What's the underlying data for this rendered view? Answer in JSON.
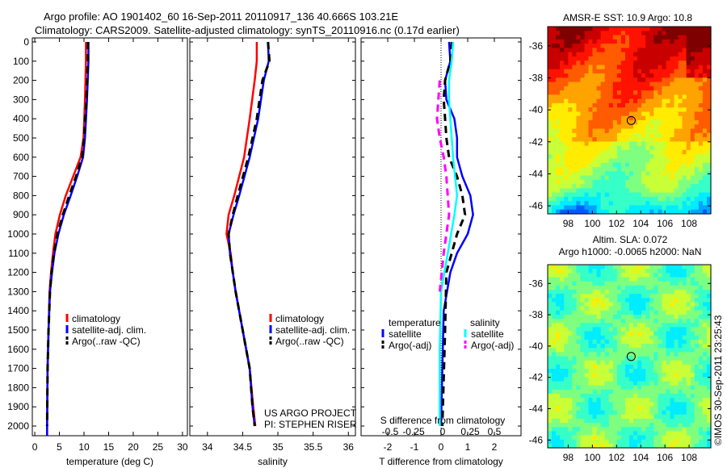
{
  "title_line1": "Argo profile: AO 1901402_60 16-Sep-2011 20110917_136 40.666S 103.21E",
  "title_line2": "Climatology: CARS2009. Satellite-adjusted climatology: synTS_20110916.nc (0.17d earlier)",
  "credit": "©IMOS 30-Sep-2011 23:25:43",
  "project_line1": "US ARGO PROJECT",
  "project_line2": "PI: STEPHEN RISER",
  "chart_data": [
    {
      "type": "line",
      "id": "temperature",
      "xlabel": "temperature (deg C)",
      "ylabel": "",
      "xlim": [
        -0.5,
        31
      ],
      "ylim": [
        2050,
        0
      ],
      "xticks": [
        0,
        5,
        10,
        15,
        20,
        25,
        30
      ],
      "yticks": [
        0,
        100,
        200,
        300,
        400,
        500,
        600,
        700,
        800,
        900,
        1000,
        1100,
        1200,
        1300,
        1400,
        1500,
        1600,
        1700,
        1800,
        1900,
        2000
      ],
      "legend": [
        "climatology",
        "satellite-adj. clim.",
        "Argo(..raw -QC)"
      ],
      "series": [
        {
          "name": "climatology",
          "color": "#ff0000",
          "dash": false,
          "depth": [
            0,
            100,
            300,
            500,
            600,
            700,
            800,
            900,
            1000,
            1100,
            1200,
            1300,
            1500,
            1700,
            2000,
            2050
          ],
          "values": [
            10.4,
            10.4,
            10.2,
            9.9,
            9.3,
            7.8,
            6.3,
            5.1,
            4.2,
            3.7,
            3.3,
            3.0,
            2.8,
            2.6,
            2.5,
            2.5
          ]
        },
        {
          "name": "satellite-adj. clim.",
          "color": "#0000ff",
          "dash": false,
          "depth": [
            0,
            100,
            300,
            500,
            600,
            700,
            800,
            900,
            1000,
            1100,
            1200,
            1300,
            1500,
            1700,
            2000,
            2050
          ],
          "values": [
            10.9,
            10.9,
            10.6,
            10.2,
            9.8,
            8.6,
            7.3,
            5.9,
            4.8,
            4.0,
            3.5,
            3.1,
            2.8,
            2.6,
            2.5,
            2.5
          ]
        },
        {
          "name": "Argo(..raw -QC)",
          "color": "#000000",
          "dash": true,
          "depth": [
            0,
            100,
            300,
            500,
            600,
            700,
            800,
            900,
            1000,
            1100,
            1200,
            1300,
            1500,
            1700,
            2000
          ],
          "values": [
            10.8,
            10.8,
            10.5,
            10.0,
            9.6,
            8.4,
            7.0,
            5.7,
            4.6,
            3.9,
            3.4,
            3.1,
            2.8,
            2.6,
            2.5
          ]
        }
      ]
    },
    {
      "type": "line",
      "id": "salinity",
      "xlabel": "salinity",
      "xlim": [
        33.75,
        36.1
      ],
      "ylim": [
        2050,
        0
      ],
      "xticks": [
        34,
        34.5,
        35,
        35.5,
        36
      ],
      "legend": [
        "climatology",
        "satellite-adj. clim.",
        "Argo(..raw -QC)"
      ],
      "series": [
        {
          "name": "climatology",
          "color": "#ff0000",
          "dash": false,
          "depth": [
            0,
            100,
            200,
            400,
            600,
            800,
            900,
            1000,
            1100,
            1200,
            1300,
            1500,
            1700,
            1900,
            2000
          ],
          "values": [
            34.7,
            34.7,
            34.67,
            34.6,
            34.52,
            34.38,
            34.3,
            34.27,
            34.33,
            34.36,
            34.4,
            34.5,
            34.6,
            34.65,
            34.68
          ]
        },
        {
          "name": "satellite-adj. clim.",
          "color": "#0000ff",
          "dash": false,
          "depth": [
            0,
            100,
            200,
            400,
            600,
            800,
            900,
            1000,
            1100,
            1200,
            1300,
            1500,
            1700,
            1900,
            2000
          ],
          "values": [
            34.86,
            34.87,
            34.8,
            34.72,
            34.6,
            34.45,
            34.37,
            34.3,
            34.32,
            34.36,
            34.4,
            34.5,
            34.6,
            34.64,
            34.67
          ]
        },
        {
          "name": "Argo(..raw -QC)",
          "color": "#000000",
          "dash": true,
          "depth": [
            0,
            100,
            200,
            400,
            600,
            800,
            900,
            1000,
            1100,
            1200,
            1300,
            1500,
            1700,
            1900,
            2000
          ],
          "values": [
            34.86,
            34.88,
            34.78,
            34.7,
            34.58,
            34.43,
            34.36,
            34.3,
            34.32,
            34.36,
            34.4,
            34.5,
            34.6,
            34.64,
            34.67
          ]
        }
      ]
    },
    {
      "type": "line",
      "id": "difference",
      "xlabel": "T difference from climatology",
      "xlabel2": "S difference from climatology",
      "xlim": [
        -3,
        3
      ],
      "ylim": [
        2050,
        0
      ],
      "xticks": [
        -2,
        -1,
        0,
        1,
        2
      ],
      "xticks2": [
        "-0.5",
        "-0.25",
        "0",
        "0.25",
        "0.5"
      ],
      "legend_temperature_title": "temperature",
      "legend_salinity_title": "salinity",
      "legend": [
        "satellite",
        "Argo(-adj)",
        "satellite",
        "Argo(-adj)"
      ],
      "series": [
        {
          "name": "T satellite",
          "color": "#0000ff",
          "dash": false,
          "depth": [
            0,
            100,
            200,
            300,
            400,
            500,
            600,
            700,
            800,
            900,
            1000,
            1100,
            1200,
            1400,
            1700,
            2000
          ],
          "values": [
            0.3,
            0.35,
            0.15,
            0.2,
            0.5,
            0.6,
            0.6,
            0.8,
            1.1,
            1.2,
            1.0,
            0.6,
            0.35,
            0.1,
            0.05,
            0.0
          ]
        },
        {
          "name": "T Argo(-adj)",
          "color": "#000000",
          "dash": true,
          "depth": [
            0,
            100,
            200,
            300,
            400,
            500,
            600,
            700,
            800,
            900,
            1000,
            1100,
            1200,
            1500,
            2000
          ],
          "values": [
            0.4,
            0.35,
            0.15,
            0.1,
            0.15,
            0.2,
            0.3,
            0.6,
            0.8,
            0.9,
            0.6,
            0.4,
            0.2,
            0.15,
            0.05
          ]
        },
        {
          "name": "S satellite",
          "color": "#00ffff",
          "dash": false,
          "depth": [
            0,
            100,
            200,
            300,
            400,
            600,
            800,
            900,
            1100,
            1300,
            1600,
            2000
          ],
          "values": [
            0.45,
            0.4,
            0.3,
            0.3,
            0.35,
            0.45,
            0.6,
            0.5,
            0.25,
            0.0,
            -0.05,
            -0.05
          ]
        },
        {
          "name": "S Argo(-adj)",
          "color": "#ff00ff",
          "dash": true,
          "depth": [
            200,
            300,
            400,
            500,
            600,
            700,
            900,
            1100,
            1300
          ],
          "values": [
            -0.05,
            -0.1,
            -0.15,
            -0.05,
            0.1,
            0.2,
            0.3,
            0.1,
            -0.05
          ]
        }
      ]
    },
    {
      "type": "heatmap",
      "id": "sst_map",
      "title": "AMSR-E SST: 10.9 Argo: 10.8",
      "xlim": [
        96.3,
        109.8
      ],
      "ylim": [
        -46.5,
        -34.8
      ],
      "xticks": [
        98,
        100,
        102,
        104,
        106,
        108
      ],
      "yticks": [
        -36,
        -38,
        -40,
        -42,
        -44,
        -46
      ],
      "marker": {
        "lon": 103.21,
        "lat": -40.666
      }
    },
    {
      "type": "heatmap",
      "id": "sla_map",
      "title_line1": "Altim. SLA: 0.072",
      "title_line2": "Argo h1000: -0.0065 h2000: NaN",
      "xlim": [
        96.3,
        109.8
      ],
      "ylim": [
        -46.5,
        -34.8
      ],
      "xticks": [
        98,
        100,
        102,
        104,
        106,
        108
      ],
      "yticks": [
        -36,
        -38,
        -40,
        -42,
        -44,
        -46
      ],
      "marker": {
        "lon": 103.21,
        "lat": -40.666
      }
    }
  ]
}
